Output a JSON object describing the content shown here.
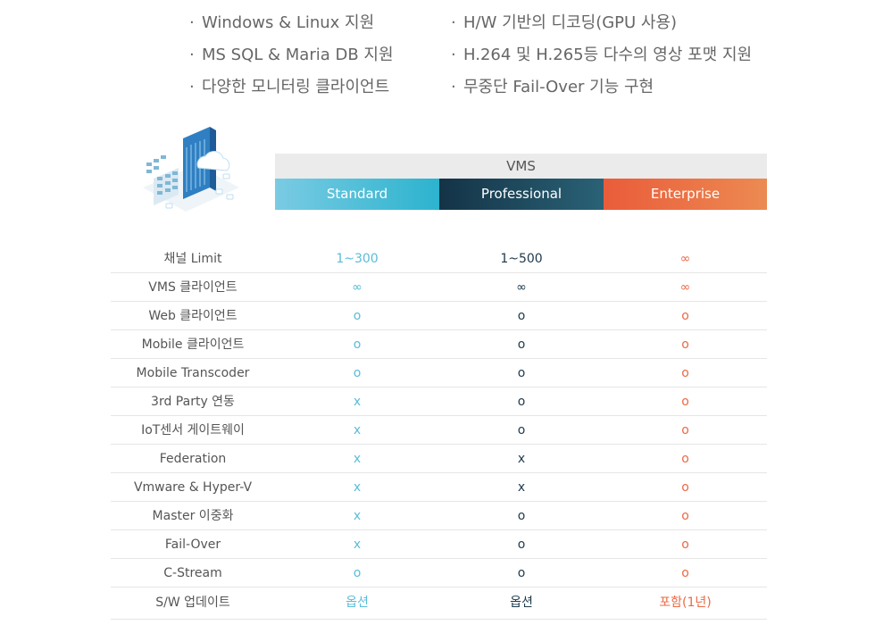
{
  "features": {
    "left": [
      "Windows & Linux 지원",
      "MS SQL & Maria DB 지원",
      "다양한 모니터링 클라이언트"
    ],
    "right": [
      "H/W 기반의 디코딩(GPU 사용)",
      "H.264 및 H.265등 다수의 영상 포맷 지원",
      "무중단 Fail-Over 기능 구현"
    ],
    "bullet": "·"
  },
  "illustration": {
    "icon": "server-cloud-icon"
  },
  "header": {
    "group": "VMS",
    "tiers": [
      "Standard",
      "Professional",
      "Enterprise"
    ]
  },
  "colors": {
    "standard": "#2cb3ce",
    "professional": "#143347",
    "enterprise": "#ea5c3a"
  },
  "rows": [
    {
      "feature": "채널 Limit",
      "standard": "1~300",
      "professional": "1~500",
      "enterprise": "∞"
    },
    {
      "feature": "VMS 클라이언트",
      "standard": "∞",
      "professional": "∞",
      "enterprise": "∞"
    },
    {
      "feature": "Web 클라이언트",
      "standard": "o",
      "professional": "o",
      "enterprise": "o"
    },
    {
      "feature": "Mobile 클라이언트",
      "standard": "o",
      "professional": "o",
      "enterprise": "o"
    },
    {
      "feature": "Mobile Transcoder",
      "standard": "o",
      "professional": "o",
      "enterprise": "o"
    },
    {
      "feature": "3rd Party 연동",
      "standard": "x",
      "professional": "o",
      "enterprise": "o"
    },
    {
      "feature": "IoT센서 게이트웨이",
      "standard": "x",
      "professional": "o",
      "enterprise": "o"
    },
    {
      "feature": "Federation",
      "standard": "x",
      "professional": "x",
      "enterprise": "o"
    },
    {
      "feature": "Vmware & Hyper-V",
      "standard": "x",
      "professional": "x",
      "enterprise": "o"
    },
    {
      "feature": "Master 이중화",
      "standard": "x",
      "professional": "o",
      "enterprise": "o"
    },
    {
      "feature": "Fail-Over",
      "standard": "x",
      "professional": "o",
      "enterprise": "o"
    },
    {
      "feature": "C-Stream",
      "standard": "o",
      "professional": "o",
      "enterprise": "o"
    },
    {
      "feature": "S/W 업데이트",
      "standard": "옵션",
      "professional": "옵션",
      "enterprise": "포함(1년)"
    }
  ]
}
